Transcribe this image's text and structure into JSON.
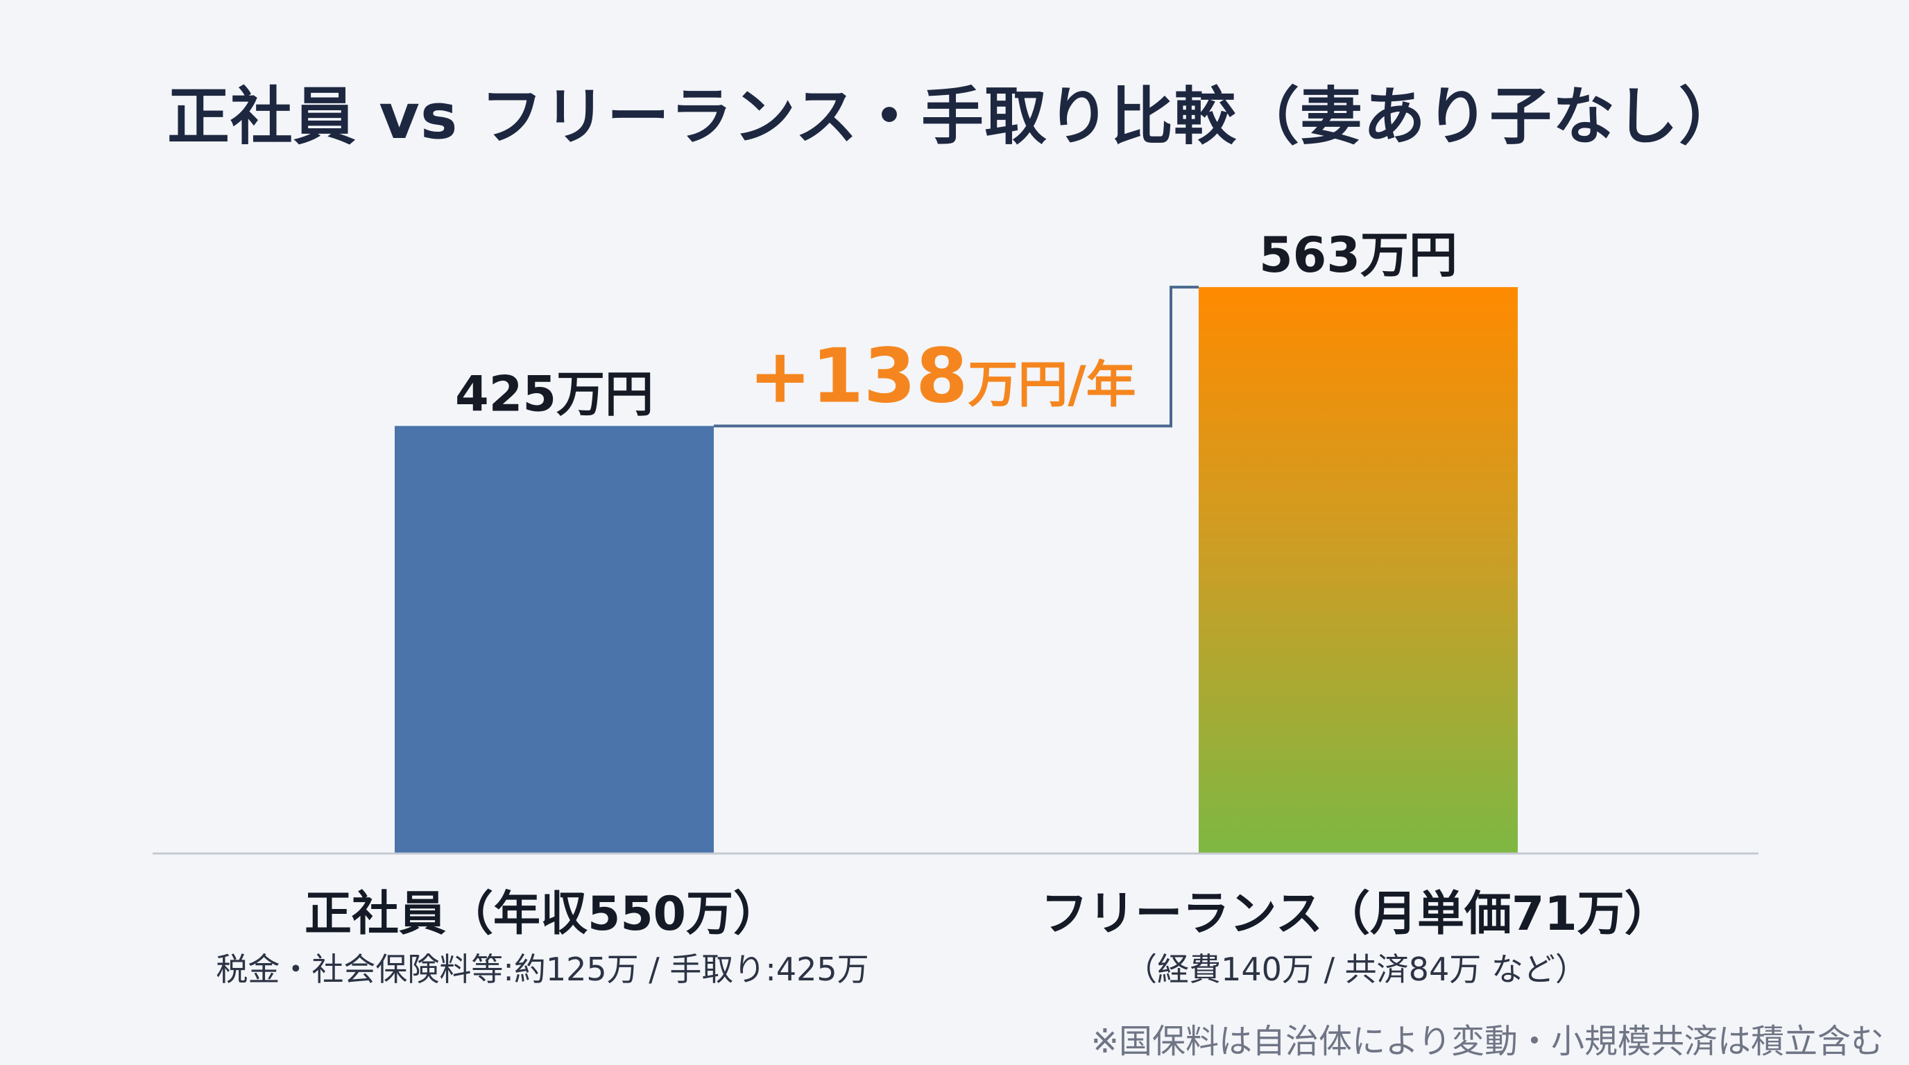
{
  "title": "正社員 vs フリーランス・手取り比較（妻あり子なし）",
  "chart_data": {
    "type": "bar",
    "categories": [
      "正社員（年収550万）",
      "フリーランス（月単価71万）"
    ],
    "category_sublabels": [
      "税金・社会保険料等:約125万 / 手取り:425万",
      "（経費140万 / 共済84万 など）"
    ],
    "values": [
      425,
      563
    ],
    "value_labels": [
      "425万円",
      "563万円"
    ],
    "bar_colors": [
      "#4a74aa",
      "gradient:#ff8a00-#7db843"
    ],
    "difference": {
      "value": 138,
      "number_text": "+138",
      "unit_text": "万円/年",
      "color": "#f5861f"
    },
    "ylim": [
      0,
      600
    ],
    "grid": false
  },
  "footnote": "※国保料は自治体により変動・小規模共済は積立含む"
}
